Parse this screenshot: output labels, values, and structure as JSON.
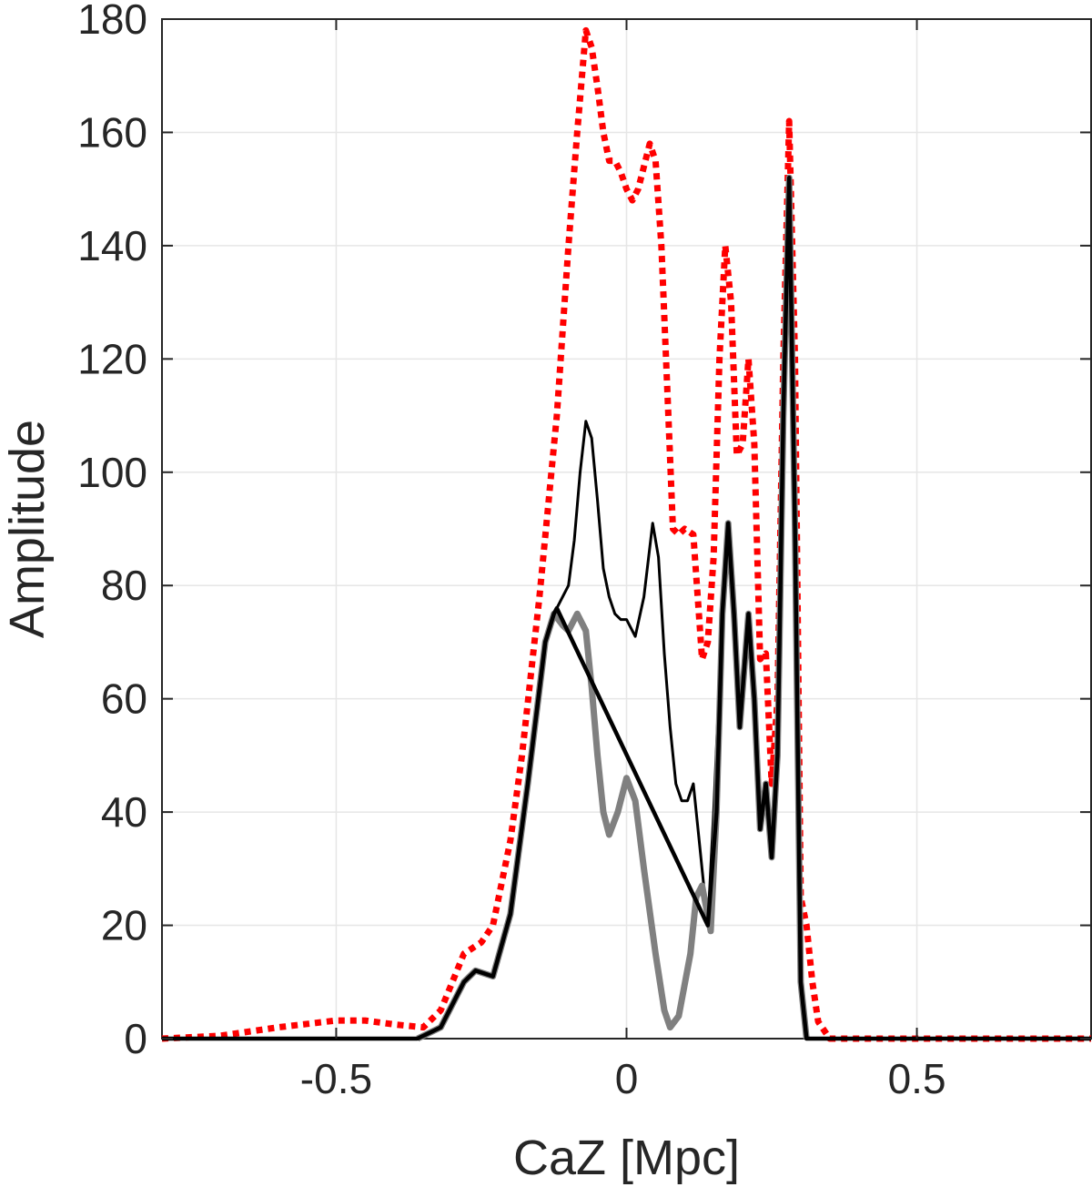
{
  "chart_data": {
    "type": "line",
    "title": "",
    "xlabel": "CaZ [Mpc]",
    "ylabel": "Amplitude",
    "xlim": [
      -0.8,
      0.8
    ],
    "ylim": [
      0,
      180
    ],
    "xticks": [
      -0.5,
      0,
      0.5
    ],
    "xtick_labels": [
      "-0.5",
      "0",
      "0.5"
    ],
    "yticks": [
      0,
      20,
      40,
      60,
      80,
      100,
      120,
      140,
      160,
      180
    ],
    "ytick_labels": [
      "0",
      "20",
      "40",
      "60",
      "80",
      "100",
      "120",
      "140",
      "160",
      "180"
    ],
    "grid": true,
    "legend": "none",
    "series": [
      {
        "style": "dotted",
        "color": "#ff0000",
        "points": [
          [
            -0.8,
            0
          ],
          [
            -0.7,
            0.5
          ],
          [
            -0.6,
            2
          ],
          [
            -0.5,
            3.2
          ],
          [
            -0.45,
            3.2
          ],
          [
            -0.4,
            2.5
          ],
          [
            -0.35,
            2
          ],
          [
            -0.32,
            5
          ],
          [
            -0.3,
            10
          ],
          [
            -0.28,
            15
          ],
          [
            -0.25,
            17
          ],
          [
            -0.23,
            20
          ],
          [
            -0.2,
            35
          ],
          [
            -0.18,
            50
          ],
          [
            -0.15,
            78
          ],
          [
            -0.12,
            110
          ],
          [
            -0.1,
            140
          ],
          [
            -0.085,
            160
          ],
          [
            -0.07,
            178
          ],
          [
            -0.06,
            175
          ],
          [
            -0.05,
            168
          ],
          [
            -0.04,
            160
          ],
          [
            -0.03,
            155
          ],
          [
            -0.02,
            155
          ],
          [
            -0.01,
            153
          ],
          [
            0,
            150
          ],
          [
            0.01,
            148
          ],
          [
            0.02,
            150
          ],
          [
            0.04,
            158
          ],
          [
            0.05,
            155
          ],
          [
            0.06,
            140
          ],
          [
            0.07,
            115
          ],
          [
            0.08,
            90
          ],
          [
            0.09,
            89
          ],
          [
            0.1,
            90
          ],
          [
            0.115,
            89
          ],
          [
            0.13,
            67
          ],
          [
            0.14,
            70
          ],
          [
            0.15,
            85
          ],
          [
            0.16,
            120
          ],
          [
            0.17,
            140
          ],
          [
            0.18,
            130
          ],
          [
            0.19,
            103
          ],
          [
            0.2,
            105
          ],
          [
            0.21,
            120
          ],
          [
            0.22,
            105
          ],
          [
            0.23,
            67
          ],
          [
            0.24,
            68
          ],
          [
            0.25,
            45
          ],
          [
            0.26,
            60
          ],
          [
            0.27,
            120
          ],
          [
            0.28,
            162
          ],
          [
            0.29,
            120
          ],
          [
            0.3,
            25
          ],
          [
            0.31,
            20
          ],
          [
            0.32,
            10
          ],
          [
            0.33,
            3
          ],
          [
            0.35,
            0
          ],
          [
            0.8,
            0
          ]
        ]
      },
      {
        "style": "solid-thin",
        "color": "#000000",
        "points": [
          [
            -0.8,
            0
          ],
          [
            -0.36,
            0
          ],
          [
            -0.32,
            2
          ],
          [
            -0.28,
            10
          ],
          [
            -0.26,
            12
          ],
          [
            -0.23,
            11
          ],
          [
            -0.2,
            22
          ],
          [
            -0.17,
            45
          ],
          [
            -0.14,
            70
          ],
          [
            -0.12,
            76
          ],
          [
            -0.1,
            80
          ],
          [
            -0.09,
            88
          ],
          [
            -0.08,
            100
          ],
          [
            -0.07,
            109
          ],
          [
            -0.06,
            106
          ],
          [
            -0.05,
            95
          ],
          [
            -0.04,
            83
          ],
          [
            -0.03,
            78
          ],
          [
            -0.02,
            75
          ],
          [
            -0.01,
            74
          ],
          [
            0,
            74
          ],
          [
            0.015,
            71
          ],
          [
            0.03,
            78
          ],
          [
            0.045,
            91
          ],
          [
            0.055,
            85
          ],
          [
            0.065,
            68
          ],
          [
            0.075,
            55
          ],
          [
            0.085,
            45
          ],
          [
            0.095,
            42
          ],
          [
            0.105,
            42
          ],
          [
            0.115,
            45
          ],
          [
            0.125,
            35
          ],
          [
            0.14,
            20
          ],
          [
            0.15,
            40
          ],
          [
            0.165,
            75
          ],
          [
            0.175,
            91
          ],
          [
            0.185,
            75
          ],
          [
            0.195,
            55
          ],
          [
            0.21,
            75
          ],
          [
            0.22,
            60
          ],
          [
            0.23,
            37
          ],
          [
            0.24,
            45
          ],
          [
            0.25,
            32
          ],
          [
            0.26,
            50
          ],
          [
            0.27,
            110
          ],
          [
            0.28,
            152
          ],
          [
            0.29,
            90
          ],
          [
            0.3,
            10
          ],
          [
            0.31,
            0
          ],
          [
            0.8,
            0
          ]
        ]
      },
      {
        "style": "solid-thick",
        "color": "#808080",
        "points": [
          [
            -0.36,
            0
          ],
          [
            -0.32,
            2
          ],
          [
            -0.28,
            10
          ],
          [
            -0.26,
            12
          ],
          [
            -0.23,
            11
          ],
          [
            -0.2,
            22
          ],
          [
            -0.17,
            45
          ],
          [
            -0.14,
            70
          ],
          [
            -0.125,
            75
          ],
          [
            -0.11,
            73
          ],
          [
            -0.1,
            72
          ],
          [
            -0.085,
            75
          ],
          [
            -0.07,
            72
          ],
          [
            -0.06,
            62
          ],
          [
            -0.05,
            50
          ],
          [
            -0.04,
            40
          ],
          [
            -0.03,
            36
          ],
          [
            -0.015,
            40
          ],
          [
            0,
            46
          ],
          [
            0.015,
            42
          ],
          [
            0.03,
            30
          ],
          [
            0.05,
            15
          ],
          [
            0.065,
            5
          ],
          [
            0.075,
            2
          ],
          [
            0.09,
            4
          ],
          [
            0.11,
            15
          ],
          [
            0.12,
            25
          ],
          [
            0.13,
            27
          ],
          [
            0.145,
            19
          ],
          [
            0.155,
            40
          ],
          [
            0.165,
            75
          ],
          [
            0.175,
            91
          ],
          [
            0.185,
            75
          ],
          [
            0.195,
            55
          ],
          [
            0.21,
            75
          ],
          [
            0.22,
            60
          ],
          [
            0.23,
            37
          ],
          [
            0.24,
            45
          ],
          [
            0.25,
            32
          ],
          [
            0.26,
            50
          ],
          [
            0.27,
            110
          ],
          [
            0.28,
            152
          ],
          [
            0.29,
            90
          ],
          [
            0.3,
            10
          ],
          [
            0.31,
            0
          ]
        ]
      },
      {
        "style": "solid-overlay",
        "color": "#000000",
        "points": [
          [
            -0.8,
            0
          ],
          [
            -0.36,
            0
          ],
          [
            -0.32,
            2
          ],
          [
            -0.28,
            10
          ],
          [
            -0.26,
            12
          ],
          [
            -0.23,
            11
          ],
          [
            -0.2,
            22
          ],
          [
            -0.17,
            45
          ],
          [
            -0.14,
            70
          ],
          [
            -0.125,
            75
          ],
          [
            -0.12,
            76
          ],
          [
            0.14,
            20
          ],
          [
            0.155,
            40
          ],
          [
            0.165,
            75
          ],
          [
            0.175,
            91
          ],
          [
            0.185,
            75
          ],
          [
            0.195,
            55
          ],
          [
            0.21,
            75
          ],
          [
            0.22,
            60
          ],
          [
            0.23,
            37
          ],
          [
            0.24,
            45
          ],
          [
            0.25,
            32
          ],
          [
            0.26,
            50
          ],
          [
            0.27,
            110
          ],
          [
            0.28,
            152
          ],
          [
            0.29,
            90
          ],
          [
            0.3,
            10
          ],
          [
            0.31,
            0
          ],
          [
            0.8,
            0
          ]
        ]
      }
    ]
  }
}
